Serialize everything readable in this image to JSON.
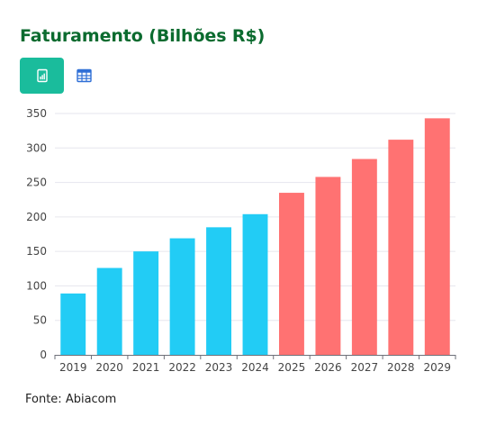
{
  "header": {
    "title": "Faturamento (Bilhões R$)"
  },
  "toolbar": {
    "chart_view_icon": "bar-chart-icon",
    "table_view_icon": "table-icon",
    "active_color": "#1abc9c",
    "table_icon_color": "#2f6fd6"
  },
  "chart_data": {
    "type": "bar",
    "title": "Faturamento (Bilhões R$)",
    "xlabel": "",
    "ylabel": "",
    "categories": [
      "2019",
      "2020",
      "2021",
      "2022",
      "2023",
      "2024",
      "2025",
      "2026",
      "2027",
      "2028",
      "2029"
    ],
    "values": [
      89,
      126,
      150,
      169,
      185,
      204,
      235,
      258,
      284,
      312,
      343
    ],
    "bar_colors": [
      "#22ccf5",
      "#22ccf5",
      "#22ccf5",
      "#22ccf5",
      "#22ccf5",
      "#22ccf5",
      "#ff7272",
      "#ff7272",
      "#ff7272",
      "#ff7272",
      "#ff7272"
    ],
    "ylim": [
      0,
      350
    ],
    "yticks": [
      0,
      50,
      100,
      150,
      200,
      250,
      300,
      350
    ],
    "grid": true,
    "legend": "none"
  },
  "footer": {
    "source": "Fonte: Abiacom"
  }
}
